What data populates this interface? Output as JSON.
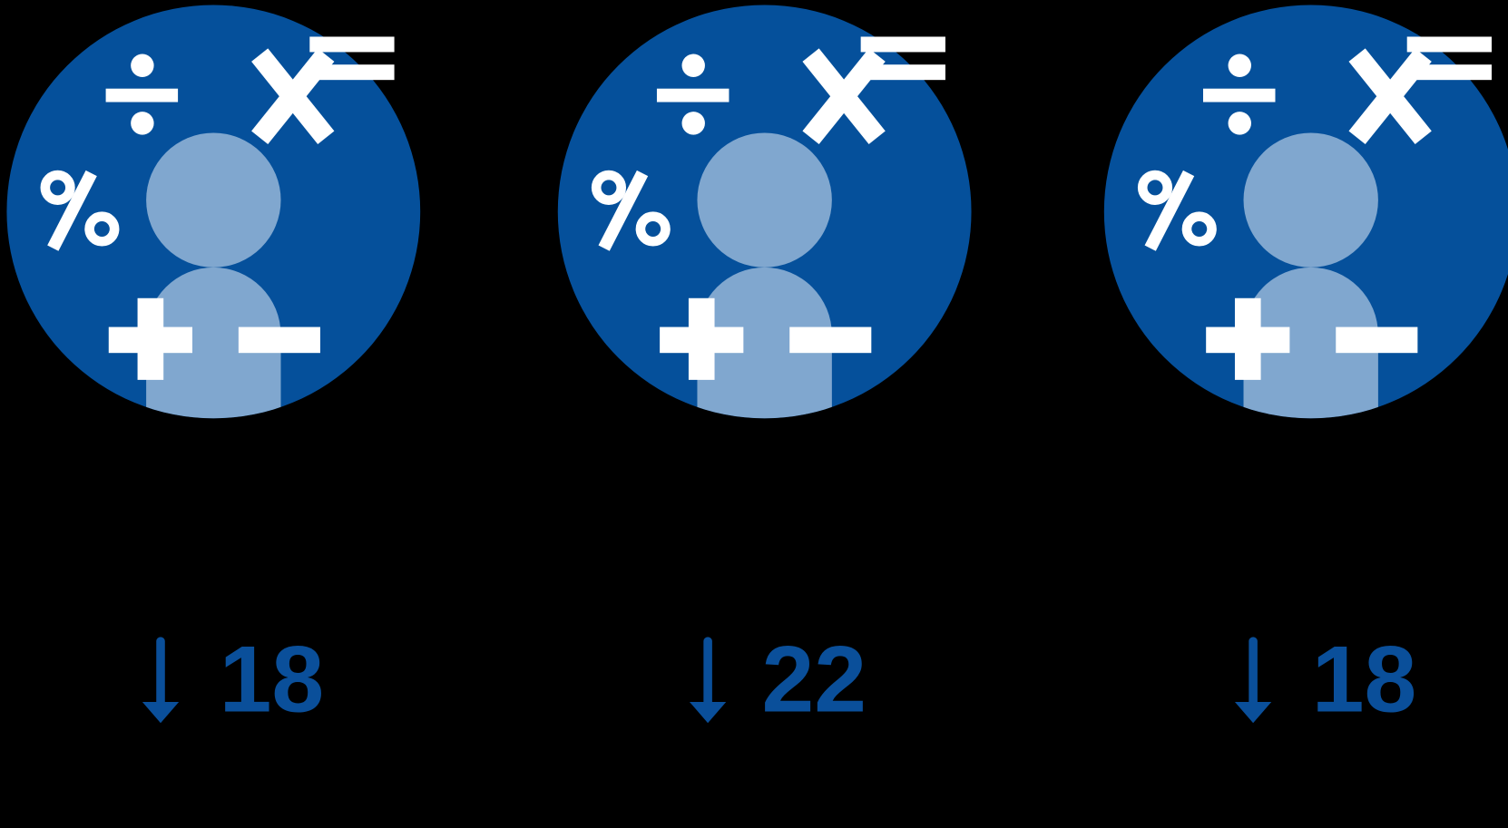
{
  "items": [
    {
      "value": "18"
    },
    {
      "value": "22"
    },
    {
      "value": "18"
    }
  ]
}
